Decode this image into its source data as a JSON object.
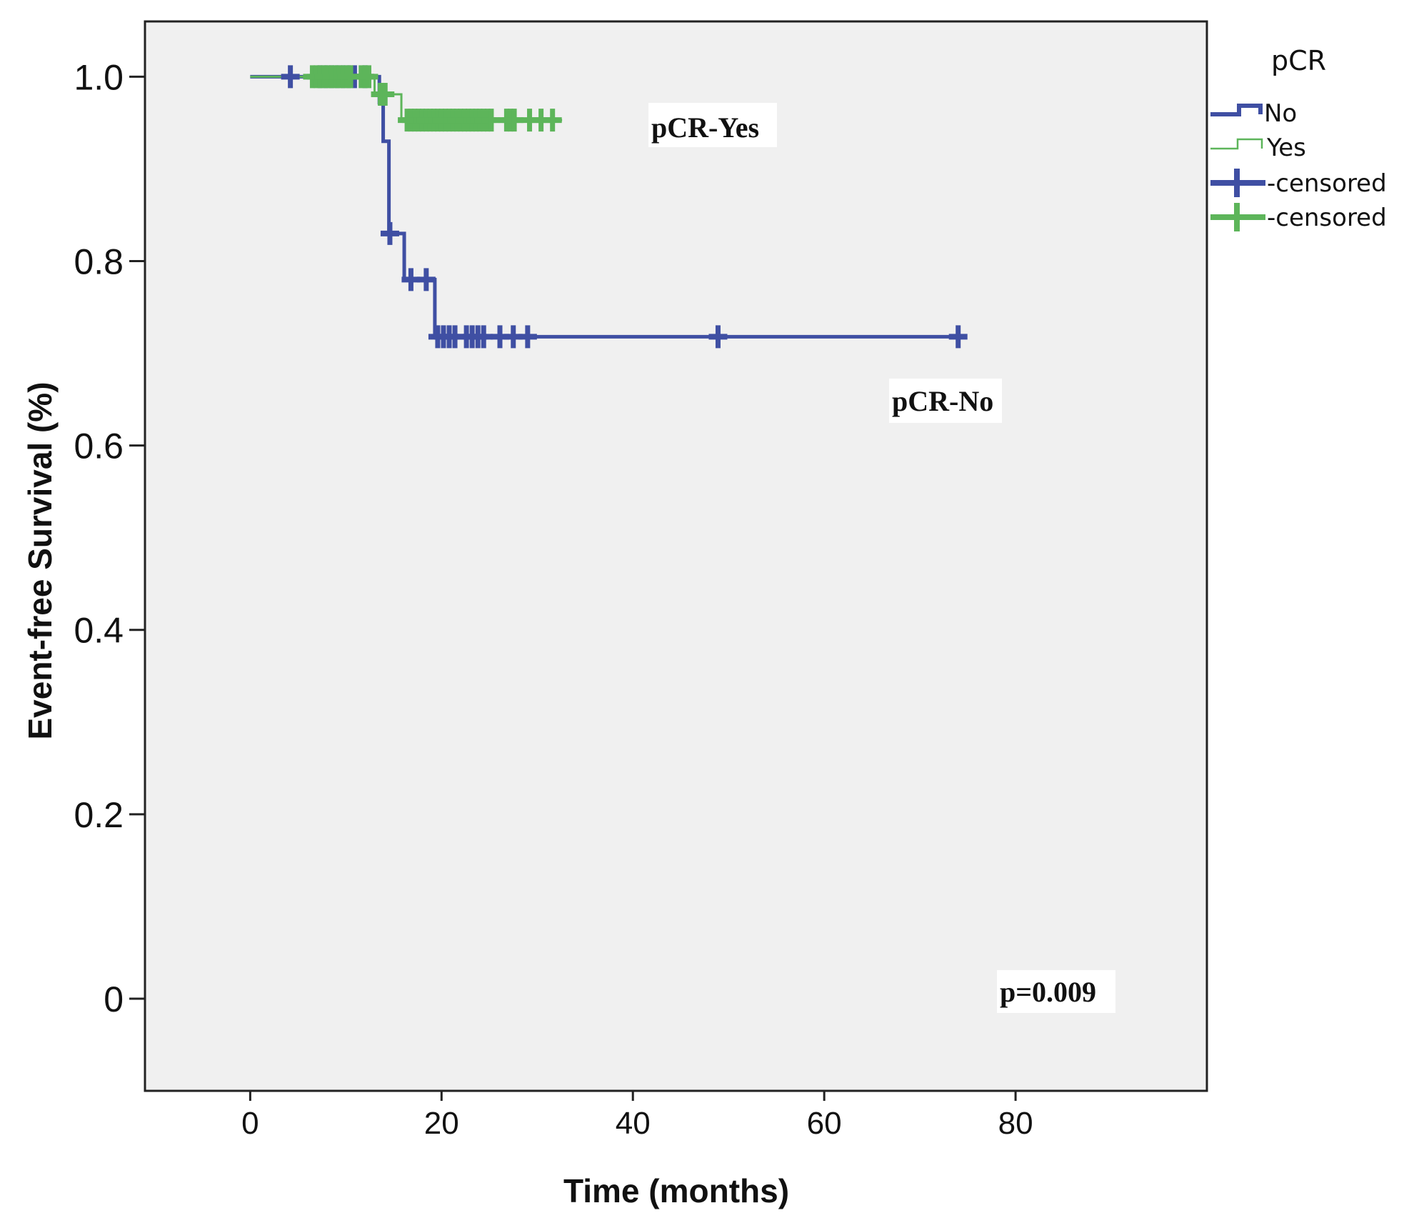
{
  "chart_data": {
    "type": "line",
    "subtype": "kaplan-meier",
    "title": "",
    "xlabel": "Time (months)",
    "ylabel": "Event-free Survival (%)",
    "xlim": [
      -11,
      100
    ],
    "ylim": [
      -0.1,
      1.06
    ],
    "xticks": [
      0,
      20,
      40,
      60,
      80
    ],
    "xtick_labels": [
      "0",
      "20",
      "40",
      "60",
      "80"
    ],
    "yticks": [
      0,
      0.2,
      0.4,
      0.6,
      0.8,
      1.0
    ],
    "ytick_labels": [
      "0",
      "0.2",
      "0.4",
      "0.6",
      "0.8",
      "1.0"
    ],
    "grid": false,
    "legend": {
      "title": "pCR",
      "position": "outside-right-top",
      "entries": [
        {
          "label": "No",
          "kind": "line",
          "series": 0
        },
        {
          "label": "Yes",
          "kind": "line",
          "series": 1
        },
        {
          "label": "-censored",
          "kind": "censor",
          "series": 0
        },
        {
          "label": "-censored",
          "kind": "censor",
          "series": 1
        }
      ]
    },
    "series": [
      {
        "name": "No",
        "color": "#3f4fa3",
        "label": "pCR-No",
        "steps": [
          [
            0,
            1.0
          ],
          [
            13.5,
            0.972
          ],
          [
            13.9,
            0.93
          ],
          [
            14.5,
            0.83
          ],
          [
            16.1,
            0.78
          ],
          [
            19.3,
            0.718
          ],
          [
            74.5,
            0.718
          ]
        ],
        "censored": [
          4.2,
          7.3,
          7.9,
          8.5,
          9.1,
          9.7,
          10.3,
          10.9,
          12.0,
          14.6,
          16.8,
          18.4,
          19.6,
          20.2,
          20.8,
          21.4,
          22.6,
          23.2,
          23.8,
          24.4,
          26.1,
          27.5,
          29.0,
          48.9,
          74.0
        ]
      },
      {
        "name": "Yes",
        "color": "#5db55a",
        "label": "pCR-Yes",
        "steps": [
          [
            0,
            1.0
          ],
          [
            13.0,
            0.981
          ],
          [
            15.8,
            0.953
          ],
          [
            32.6,
            0.953
          ]
        ],
        "censored": [
          6.5,
          6.9,
          7.3,
          7.7,
          8.1,
          8.5,
          8.9,
          9.3,
          9.7,
          10.1,
          10.5,
          11.6,
          12.0,
          12.4,
          13.6,
          14.1,
          16.4,
          16.8,
          17.2,
          17.6,
          18.0,
          18.4,
          18.8,
          19.2,
          19.6,
          20.0,
          20.4,
          20.8,
          21.2,
          21.6,
          22.0,
          22.4,
          22.8,
          23.2,
          23.6,
          24.0,
          24.4,
          24.8,
          25.2,
          26.8,
          27.2,
          27.6,
          29.2,
          30.4,
          31.6
        ]
      }
    ],
    "annotations": [
      "pCR-Yes",
      "pCR-No",
      "p=0.009"
    ]
  }
}
